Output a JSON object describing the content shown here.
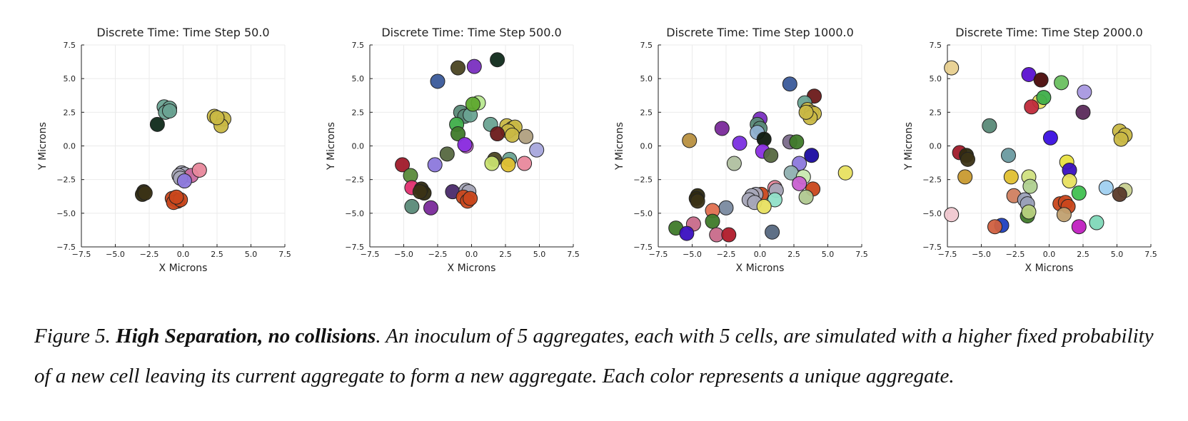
{
  "figure": {
    "caption_prefix": "Figure 5. ",
    "caption_bold": "High Separation, no collisions",
    "caption_rest": ". An inoculum of 5 aggregates, each with 5 cells, are simulated with a higher fixed probability of a new cell leaving its current aggregate to form a new  aggregate. Each color represents a unique aggregate."
  },
  "chart_data": [
    {
      "type": "scatter",
      "title": "Discrete Time: Time Step 50.0",
      "xlabel": "X Microns",
      "ylabel": "Y Microns",
      "xlim": [
        -7.5,
        7.5
      ],
      "ylim": [
        -7.5,
        7.5
      ],
      "xticks": [
        "−7.5",
        "−5.0",
        "−2.5",
        "0.0",
        "2.5",
        "5.0",
        "7.5"
      ],
      "yticks": [
        "−7.5",
        "−5.0",
        "−2.5",
        "0.0",
        "2.5",
        "5.0",
        "7.5"
      ],
      "grid": true,
      "points": [
        {
          "x": -1.4,
          "y": 2.9,
          "color": "#6aa392"
        },
        {
          "x": -1.0,
          "y": 2.8,
          "color": "#6aa392"
        },
        {
          "x": -1.3,
          "y": 2.5,
          "color": "#6aa392"
        },
        {
          "x": -1.0,
          "y": 2.6,
          "color": "#6aa392"
        },
        {
          "x": -1.9,
          "y": 1.6,
          "color": "#0f2a1a"
        },
        {
          "x": 2.3,
          "y": 2.2,
          "color": "#c9b844"
        },
        {
          "x": 2.6,
          "y": 2.0,
          "color": "#c9b844"
        },
        {
          "x": 3.0,
          "y": 2.0,
          "color": "#c9b844"
        },
        {
          "x": 2.8,
          "y": 1.5,
          "color": "#c9b844"
        },
        {
          "x": 2.5,
          "y": 2.1,
          "color": "#c9b844"
        },
        {
          "x": -0.1,
          "y": -2.0,
          "color": "#a7a7b8"
        },
        {
          "x": 0.1,
          "y": -2.1,
          "color": "#a7a7b8"
        },
        {
          "x": -0.3,
          "y": -2.2,
          "color": "#a7a7b8"
        },
        {
          "x": 0.6,
          "y": -2.2,
          "color": "#c86aa0"
        },
        {
          "x": 1.2,
          "y": -1.8,
          "color": "#e8889c"
        },
        {
          "x": -0.2,
          "y": -2.4,
          "color": "#a7a7b8"
        },
        {
          "x": 0.1,
          "y": -2.6,
          "color": "#8c78dc"
        },
        {
          "x": -2.9,
          "y": -3.4,
          "color": "#2e2a10"
        },
        {
          "x": -3.0,
          "y": -3.6,
          "color": "#2e2a10"
        },
        {
          "x": -2.8,
          "y": -3.5,
          "color": "#3b3316"
        },
        {
          "x": -0.8,
          "y": -3.9,
          "color": "#c9471c"
        },
        {
          "x": -0.4,
          "y": -4.1,
          "color": "#c9471c"
        },
        {
          "x": -0.7,
          "y": -4.2,
          "color": "#c9471c"
        },
        {
          "x": -0.2,
          "y": -4.0,
          "color": "#c9471c"
        },
        {
          "x": -0.5,
          "y": -3.8,
          "color": "#c9471c"
        }
      ]
    },
    {
      "type": "scatter",
      "title": "Discrete Time: Time Step 500.0",
      "xlabel": "X Microns",
      "ylabel": "Y Microns",
      "xlim": [
        -7.5,
        7.5
      ],
      "ylim": [
        -7.5,
        7.5
      ],
      "xticks": [
        "−7.5",
        "−5.0",
        "−2.5",
        "0.0",
        "2.5",
        "5.0",
        "7.5"
      ],
      "yticks": [
        "−7.5",
        "−5.0",
        "−2.5",
        "0.0",
        "2.5",
        "5.0",
        "7.5"
      ],
      "grid": true,
      "points": [
        {
          "x": -1.0,
          "y": 5.8,
          "color": "#4a4422"
        },
        {
          "x": 0.2,
          "y": 5.9,
          "color": "#7a2fc0"
        },
        {
          "x": 1.9,
          "y": 6.4,
          "color": "#0f2a1a"
        },
        {
          "x": -2.5,
          "y": 4.8,
          "color": "#3a5a9a"
        },
        {
          "x": -0.8,
          "y": 2.5,
          "color": "#5a8a78"
        },
        {
          "x": -0.5,
          "y": 2.2,
          "color": "#5a8a78"
        },
        {
          "x": -0.1,
          "y": 2.3,
          "color": "#6aa392"
        },
        {
          "x": 0.5,
          "y": 3.2,
          "color": "#b8e890"
        },
        {
          "x": 0.1,
          "y": 3.1,
          "color": "#5ea82e"
        },
        {
          "x": -1.1,
          "y": 1.6,
          "color": "#3fae4a"
        },
        {
          "x": -1.0,
          "y": 0.9,
          "color": "#3f7a2a"
        },
        {
          "x": 1.4,
          "y": 1.6,
          "color": "#6aa392"
        },
        {
          "x": 2.6,
          "y": 1.5,
          "color": "#c9b844"
        },
        {
          "x": 3.0,
          "y": 1.3,
          "color": "#c9b844"
        },
        {
          "x": 3.2,
          "y": 1.4,
          "color": "#c9b844"
        },
        {
          "x": 2.7,
          "y": 1.1,
          "color": "#c9b844"
        },
        {
          "x": 3.0,
          "y": 0.8,
          "color": "#c9b844"
        },
        {
          "x": 1.9,
          "y": 0.9,
          "color": "#6b1a1a"
        },
        {
          "x": 4.0,
          "y": 0.7,
          "color": "#b0a080"
        },
        {
          "x": 4.8,
          "y": -0.3,
          "color": "#a7a7dc"
        },
        {
          "x": -0.4,
          "y": 0.0,
          "color": "#c86ad0"
        },
        {
          "x": -0.5,
          "y": 0.1,
          "color": "#8a2fe0"
        },
        {
          "x": -1.8,
          "y": -0.6,
          "color": "#566840"
        },
        {
          "x": -2.7,
          "y": -1.4,
          "color": "#8c78dc"
        },
        {
          "x": -5.1,
          "y": -1.4,
          "color": "#a01a2a"
        },
        {
          "x": -4.5,
          "y": -2.2,
          "color": "#5a8a3a"
        },
        {
          "x": 1.7,
          "y": -1.0,
          "color": "#4a4422"
        },
        {
          "x": 1.5,
          "y": -1.3,
          "color": "#c8e070"
        },
        {
          "x": 2.8,
          "y": -1.0,
          "color": "#6aa392"
        },
        {
          "x": 2.7,
          "y": -1.4,
          "color": "#e0c030"
        },
        {
          "x": 3.9,
          "y": -1.3,
          "color": "#e8889c"
        },
        {
          "x": -4.4,
          "y": -3.1,
          "color": "#e03070"
        },
        {
          "x": -3.7,
          "y": -3.2,
          "color": "#2e2a10"
        },
        {
          "x": -3.5,
          "y": -3.5,
          "color": "#2e2a10"
        },
        {
          "x": -3.8,
          "y": -3.4,
          "color": "#3b3316"
        },
        {
          "x": -1.4,
          "y": -3.4,
          "color": "#4a2a6a"
        },
        {
          "x": -0.4,
          "y": -3.3,
          "color": "#a7a7b8"
        },
        {
          "x": -0.2,
          "y": -3.4,
          "color": "#a7a7b8"
        },
        {
          "x": -0.6,
          "y": -3.8,
          "color": "#c9471c"
        },
        {
          "x": -0.3,
          "y": -4.1,
          "color": "#c9471c"
        },
        {
          "x": -0.1,
          "y": -3.9,
          "color": "#c9471c"
        },
        {
          "x": -4.4,
          "y": -4.5,
          "color": "#5a8a78"
        },
        {
          "x": -3.0,
          "y": -4.6,
          "color": "#7a2a9a"
        }
      ]
    },
    {
      "type": "scatter",
      "title": "Discrete Time: Time Step 1000.0",
      "xlabel": "X Microns",
      "ylabel": "Y Microns",
      "xlim": [
        -7.5,
        7.5
      ],
      "ylim": [
        -7.5,
        7.5
      ],
      "xticks": [
        "−7.5",
        "−5.0",
        "−2.5",
        "0.0",
        "2.5",
        "5.0",
        "7.5"
      ],
      "yticks": [
        "−7.5",
        "−5.0",
        "−2.5",
        "0.0",
        "2.5",
        "5.0",
        "7.5"
      ],
      "grid": true,
      "points": [
        {
          "x": 2.2,
          "y": 4.6,
          "color": "#3a5a9a"
        },
        {
          "x": 4.0,
          "y": 3.7,
          "color": "#6b1a1a"
        },
        {
          "x": 3.3,
          "y": 3.2,
          "color": "#6aa392"
        },
        {
          "x": 3.5,
          "y": 2.7,
          "color": "#c9b844"
        },
        {
          "x": 3.8,
          "y": 2.5,
          "color": "#c9b844"
        },
        {
          "x": 4.0,
          "y": 2.4,
          "color": "#c9b844"
        },
        {
          "x": 3.7,
          "y": 2.1,
          "color": "#c9b844"
        },
        {
          "x": 3.4,
          "y": 2.5,
          "color": "#c9b844"
        },
        {
          "x": 0.0,
          "y": 2.0,
          "color": "#7a2fc0"
        },
        {
          "x": -0.2,
          "y": 1.6,
          "color": "#5a8a78"
        },
        {
          "x": 0.0,
          "y": 1.3,
          "color": "#5a8a78"
        },
        {
          "x": -2.8,
          "y": 1.3,
          "color": "#7a2a9a"
        },
        {
          "x": -0.2,
          "y": 1.0,
          "color": "#8fb0d0"
        },
        {
          "x": 0.3,
          "y": 0.5,
          "color": "#0f1a0f"
        },
        {
          "x": -1.5,
          "y": 0.2,
          "color": "#7a2fe0"
        },
        {
          "x": -5.2,
          "y": 0.4,
          "color": "#b89040"
        },
        {
          "x": 2.2,
          "y": 0.3,
          "color": "#7a6a8a"
        },
        {
          "x": 2.7,
          "y": 0.3,
          "color": "#3f7a2a"
        },
        {
          "x": 0.2,
          "y": -0.4,
          "color": "#8a2fe0"
        },
        {
          "x": 0.8,
          "y": -0.7,
          "color": "#566840"
        },
        {
          "x": 3.8,
          "y": -0.7,
          "color": "#1a0aa0"
        },
        {
          "x": -1.9,
          "y": -1.3,
          "color": "#b0c0a0"
        },
        {
          "x": 2.9,
          "y": -1.3,
          "color": "#8c78dc"
        },
        {
          "x": 2.3,
          "y": -2.0,
          "color": "#8fb0b0"
        },
        {
          "x": 3.2,
          "y": -2.3,
          "color": "#c8e8b0"
        },
        {
          "x": 6.3,
          "y": -2.0,
          "color": "#e8e060"
        },
        {
          "x": 2.9,
          "y": -2.8,
          "color": "#c860d0"
        },
        {
          "x": 3.9,
          "y": -3.2,
          "color": "#c9471c"
        },
        {
          "x": 1.1,
          "y": -3.1,
          "color": "#e8889c"
        },
        {
          "x": 1.2,
          "y": -3.3,
          "color": "#a7a7b8"
        },
        {
          "x": 0.1,
          "y": -3.6,
          "color": "#c9471c"
        },
        {
          "x": -0.3,
          "y": -3.6,
          "color": "#a7a7b8"
        },
        {
          "x": -0.6,
          "y": -3.7,
          "color": "#a7a7b8"
        },
        {
          "x": -0.8,
          "y": -4.0,
          "color": "#a7a7b8"
        },
        {
          "x": -0.4,
          "y": -4.2,
          "color": "#a7a7b8"
        },
        {
          "x": 1.1,
          "y": -4.0,
          "color": "#90e0c8"
        },
        {
          "x": 0.3,
          "y": -4.5,
          "color": "#e8e060"
        },
        {
          "x": 3.4,
          "y": -3.8,
          "color": "#b0c890"
        },
        {
          "x": -4.6,
          "y": -3.7,
          "color": "#2e2a10"
        },
        {
          "x": -4.7,
          "y": -3.9,
          "color": "#2e2a10"
        },
        {
          "x": -4.6,
          "y": -4.1,
          "color": "#3b3316"
        },
        {
          "x": -2.5,
          "y": -4.6,
          "color": "#7a8aa0"
        },
        {
          "x": -3.5,
          "y": -4.8,
          "color": "#e07050"
        },
        {
          "x": -3.5,
          "y": -5.6,
          "color": "#3f7a2a"
        },
        {
          "x": -4.9,
          "y": -5.8,
          "color": "#c86a8a"
        },
        {
          "x": -6.2,
          "y": -6.1,
          "color": "#3f7a2a"
        },
        {
          "x": -5.4,
          "y": -6.5,
          "color": "#3a10c0"
        },
        {
          "x": -3.2,
          "y": -6.6,
          "color": "#c86a8a"
        },
        {
          "x": -2.3,
          "y": -6.6,
          "color": "#b01a2a"
        },
        {
          "x": 0.9,
          "y": -6.4,
          "color": "#566880"
        }
      ]
    },
    {
      "type": "scatter",
      "title": "Discrete Time: Time Step 2000.0",
      "xlabel": "X Microns",
      "ylabel": "Y Microns",
      "xlim": [
        -7.5,
        7.5
      ],
      "ylim": [
        -7.5,
        7.5
      ],
      "xticks": [
        "−7.5",
        "−5.0",
        "−2.5",
        "0.0",
        "2.5",
        "5.0",
        "7.5"
      ],
      "yticks": [
        "−7.5",
        "−5.0",
        "−2.5",
        "0.0",
        "2.5",
        "5.0",
        "7.5"
      ],
      "grid": true,
      "points": [
        {
          "x": -7.2,
          "y": 5.8,
          "color": "#e8d090"
        },
        {
          "x": -1.5,
          "y": 5.3,
          "color": "#5a10d0"
        },
        {
          "x": -0.6,
          "y": 4.9,
          "color": "#4a0a0a"
        },
        {
          "x": 0.9,
          "y": 4.7,
          "color": "#6ac060"
        },
        {
          "x": 2.6,
          "y": 4.0,
          "color": "#a898e0"
        },
        {
          "x": -0.7,
          "y": 3.3,
          "color": "#e8e060"
        },
        {
          "x": -0.4,
          "y": 3.6,
          "color": "#3fae4a"
        },
        {
          "x": -1.3,
          "y": 2.9,
          "color": "#c02a3a"
        },
        {
          "x": 2.5,
          "y": 2.5,
          "color": "#5a2a5a"
        },
        {
          "x": -4.4,
          "y": 1.5,
          "color": "#5a8a78"
        },
        {
          "x": 0.1,
          "y": 0.6,
          "color": "#3a10e0"
        },
        {
          "x": 5.2,
          "y": 1.1,
          "color": "#c9b844"
        },
        {
          "x": 5.6,
          "y": 0.8,
          "color": "#c9b844"
        },
        {
          "x": 5.3,
          "y": 0.5,
          "color": "#c9b844"
        },
        {
          "x": -6.6,
          "y": -0.5,
          "color": "#a01a2a"
        },
        {
          "x": -6.1,
          "y": -0.7,
          "color": "#2e2a10"
        },
        {
          "x": -6.0,
          "y": -1.0,
          "color": "#3b3316"
        },
        {
          "x": -3.0,
          "y": -0.7,
          "color": "#6a9aa0"
        },
        {
          "x": 1.3,
          "y": -1.2,
          "color": "#e8e040"
        },
        {
          "x": 1.5,
          "y": -1.8,
          "color": "#3a10c0"
        },
        {
          "x": -6.2,
          "y": -2.3,
          "color": "#c89a30"
        },
        {
          "x": -2.8,
          "y": -2.3,
          "color": "#e0c030"
        },
        {
          "x": -1.5,
          "y": -2.3,
          "color": "#d0e080"
        },
        {
          "x": -1.4,
          "y": -3.0,
          "color": "#b0d090"
        },
        {
          "x": 1.5,
          "y": -2.6,
          "color": "#e8e060"
        },
        {
          "x": 4.2,
          "y": -3.1,
          "color": "#a0d0f0"
        },
        {
          "x": 5.6,
          "y": -3.3,
          "color": "#c8d090"
        },
        {
          "x": 2.2,
          "y": -3.5,
          "color": "#40c050"
        },
        {
          "x": 5.2,
          "y": -3.6,
          "color": "#5a3a2a"
        },
        {
          "x": -2.6,
          "y": -3.7,
          "color": "#d08060"
        },
        {
          "x": -1.8,
          "y": -4.0,
          "color": "#9aa0b8"
        },
        {
          "x": -1.6,
          "y": -4.3,
          "color": "#9aa0b8"
        },
        {
          "x": 0.8,
          "y": -4.3,
          "color": "#c9471c"
        },
        {
          "x": 1.2,
          "y": -4.2,
          "color": "#c9471c"
        },
        {
          "x": 1.4,
          "y": -4.5,
          "color": "#c9471c"
        },
        {
          "x": 1.1,
          "y": -5.1,
          "color": "#c0a070"
        },
        {
          "x": -1.6,
          "y": -5.2,
          "color": "#3f7a2a"
        },
        {
          "x": -1.5,
          "y": -4.9,
          "color": "#b8d080"
        },
        {
          "x": -7.2,
          "y": -5.1,
          "color": "#f0c8d0"
        },
        {
          "x": -3.5,
          "y": -5.9,
          "color": "#2040c0"
        },
        {
          "x": -4.0,
          "y": -6.0,
          "color": "#d06040"
        },
        {
          "x": 2.2,
          "y": -6.0,
          "color": "#c020c0"
        },
        {
          "x": 3.5,
          "y": -5.7,
          "color": "#80d8b8"
        }
      ]
    }
  ]
}
